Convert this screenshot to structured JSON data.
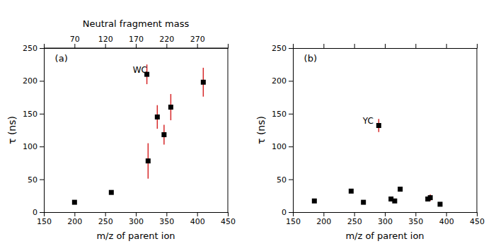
{
  "chart_data": [
    {
      "type": "scatter",
      "title": "(a)",
      "x_label": "m/z of parent ion",
      "y_label": "τ (ns)",
      "x": [
        200,
        260,
        318,
        320,
        335,
        346,
        357,
        410
      ],
      "values": [
        15,
        30,
        210,
        78,
        145,
        118,
        160,
        198
      ],
      "errors": [
        null,
        null,
        15,
        27,
        18,
        15,
        20,
        22
      ],
      "color": "#000000",
      "marker": "square",
      "xlim": [
        150,
        450
      ],
      "xticks": [
        150,
        200,
        250,
        300,
        350,
        400,
        450
      ],
      "ylim": [
        0,
        250
      ],
      "yticks": [
        0,
        50,
        100,
        150,
        200,
        250
      ],
      "x2_label": "Neutral fragment mass",
      "x2lim": [
        20,
        320
      ],
      "x2ticks": [
        70,
        120,
        170,
        220,
        270
      ],
      "annotations": [
        {
          "text": "WC",
          "x": 295,
          "y": 212
        }
      ]
    },
    {
      "type": "scatter",
      "title": "(b)",
      "x_label": "m/z of parent ion",
      "y_label": "τ (ns)",
      "x": [
        185,
        245,
        265,
        290,
        310,
        316,
        325,
        370,
        374,
        390
      ],
      "values": [
        17,
        32,
        15,
        132,
        20,
        17,
        35,
        20,
        22,
        12
      ],
      "errors": [
        null,
        null,
        null,
        10,
        null,
        null,
        null,
        null,
        5,
        null
      ],
      "color": "#000000",
      "marker": "square",
      "xlim": [
        150,
        450
      ],
      "xticks": [
        150,
        200,
        250,
        300,
        350,
        400,
        450
      ],
      "ylim": [
        0,
        250
      ],
      "yticks": [
        0,
        50,
        100,
        150,
        200,
        250
      ],
      "annotations": [
        {
          "text": "YC",
          "x": 264,
          "y": 135
        }
      ]
    }
  ]
}
